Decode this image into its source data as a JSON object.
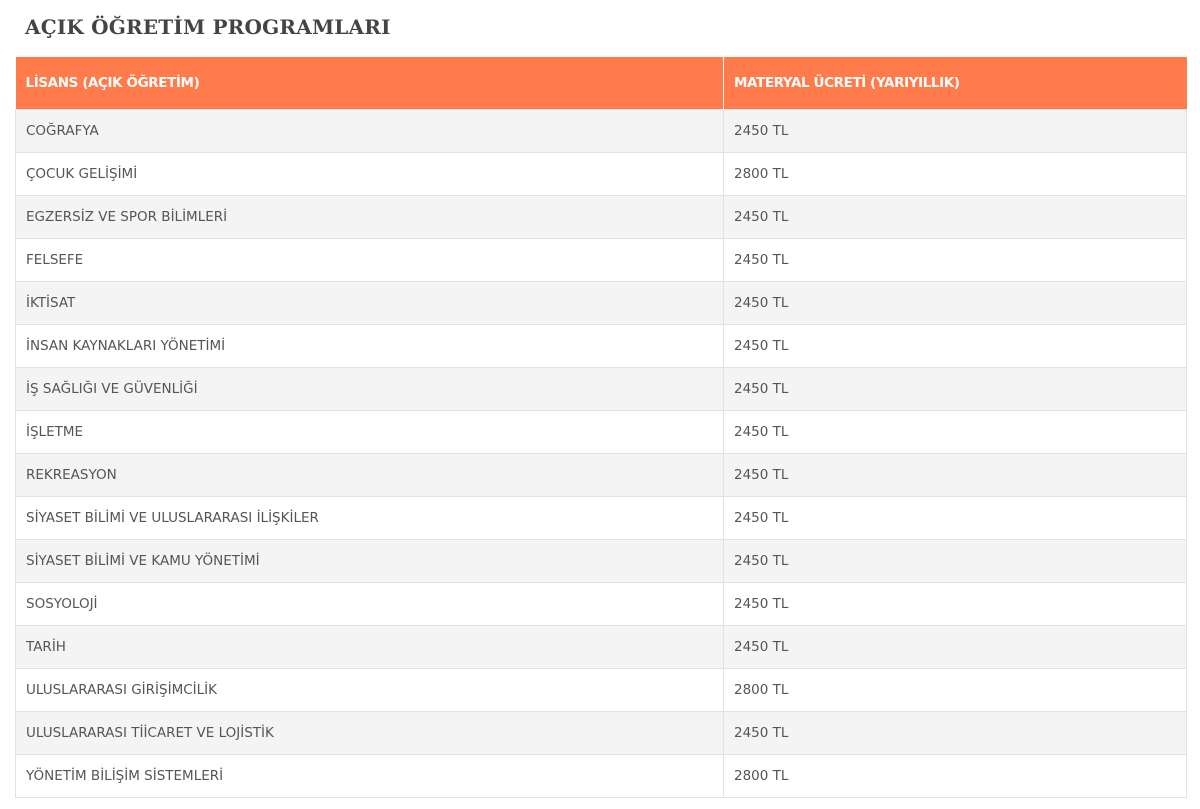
{
  "page": {
    "title": "AÇIK ÖĞRETİM PROGRAMLARI"
  },
  "table": {
    "headers": [
      "LİSANS (AÇIK ÖĞRETİM)",
      "MATERYAL ÜCRETİ (YARIYILLIK)"
    ],
    "rows": [
      {
        "program": "COĞRAFYA",
        "fee": "2450 TL"
      },
      {
        "program": "ÇOCUK GELİŞİMİ",
        "fee": "2800 TL"
      },
      {
        "program": "EGZERSİZ VE SPOR BİLİMLERİ",
        "fee": "2450 TL"
      },
      {
        "program": "FELSEFE",
        "fee": "2450 TL"
      },
      {
        "program": "İKTİSAT",
        "fee": "2450 TL"
      },
      {
        "program": "İNSAN KAYNAKLARI YÖNETİMİ",
        "fee": "2450 TL"
      },
      {
        "program": "İŞ SAĞLIĞI VE GÜVENLİĞİ",
        "fee": "2450 TL"
      },
      {
        "program": "İŞLETME",
        "fee": "2450 TL"
      },
      {
        "program": "REKREASYON",
        "fee": "2450 TL"
      },
      {
        "program": "SİYASET BİLİMİ VE ULUSLARARASI İLİŞKİLER",
        "fee": "2450 TL"
      },
      {
        "program": "SİYASET BİLİMİ VE KAMU YÖNETİMİ",
        "fee": "2450 TL"
      },
      {
        "program": "SOSYOLOJİ",
        "fee": "2450 TL"
      },
      {
        "program": "TARİH",
        "fee": "2450 TL"
      },
      {
        "program": "ULUSLARARASI GİRİŞİMCİLİK",
        "fee": "2800 TL"
      },
      {
        "program": "ULUSLARARASI TİİCARET VE LOJİSTİK",
        "fee": "2450 TL"
      },
      {
        "program": "YÖNETİM BİLİŞİM SİSTEMLERİ",
        "fee": "2800 TL"
      }
    ]
  },
  "colors": {
    "header_bg": "#ff7b4b",
    "row_alt_bg": "#f4f4f4",
    "title_text": "#444444"
  }
}
